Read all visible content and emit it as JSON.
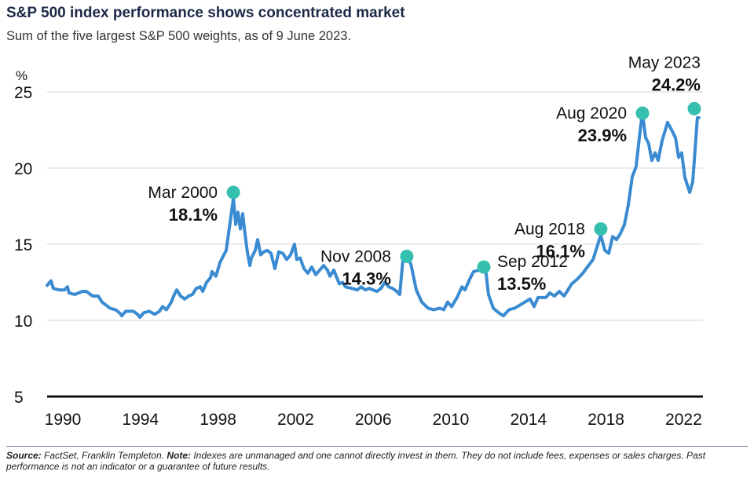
{
  "title": "S&P 500 index performance shows concentrated market",
  "subtitle": "Sum of the five largest S&P 500 weights, as of 9 June 2023.",
  "footer": {
    "source_label": "Source:",
    "source_text": " FactSet, Franklin Templeton. ",
    "note_label": "Note:",
    "note_text": " Indexes are unmanaged and one cannot directly invest in them. They do not include fees, expenses or sales charges. Past performance is not an indicator or a guarantee of future results."
  },
  "chart_data": {
    "type": "line",
    "title": "",
    "xlabel": "",
    "ylabel": "%",
    "xlim": [
      1989.2,
      2022.9
    ],
    "ylim": [
      5,
      25
    ],
    "x_ticks": [
      "1990",
      "1994",
      "1998",
      "2002",
      "2006",
      "2010",
      "2014",
      "2018",
      "2022"
    ],
    "y_ticks": [
      "5",
      "10",
      "15",
      "20",
      "25"
    ],
    "grid": "horizontal",
    "colors": {
      "line": "#3a8bd1",
      "marker": "#35bfae",
      "grid": "#e3e3e3",
      "baseline": "#111111"
    },
    "series": [
      {
        "points": [
          [
            1989.19,
            12.3
          ],
          [
            1989.39,
            12.6
          ],
          [
            1989.51,
            12.1
          ],
          [
            1989.8,
            12.0
          ],
          [
            1990.08,
            12.0
          ],
          [
            1990.24,
            12.2
          ],
          [
            1990.32,
            11.8
          ],
          [
            1990.61,
            11.7
          ],
          [
            1991.01,
            11.9
          ],
          [
            1991.21,
            11.9
          ],
          [
            1991.54,
            11.6
          ],
          [
            1991.82,
            11.6
          ],
          [
            1992.02,
            11.2
          ],
          [
            1992.23,
            11.0
          ],
          [
            1992.43,
            10.8
          ],
          [
            1992.71,
            10.7
          ],
          [
            1992.92,
            10.5
          ],
          [
            1993.04,
            10.3
          ],
          [
            1993.24,
            10.6
          ],
          [
            1993.44,
            10.6
          ],
          [
            1993.64,
            10.6
          ],
          [
            1993.85,
            10.4
          ],
          [
            1993.97,
            10.2
          ],
          [
            1994.17,
            10.5
          ],
          [
            1994.45,
            10.6
          ],
          [
            1994.74,
            10.4
          ],
          [
            1994.98,
            10.6
          ],
          [
            1995.14,
            10.9
          ],
          [
            1995.34,
            10.7
          ],
          [
            1995.59,
            11.2
          ],
          [
            1995.75,
            11.7
          ],
          [
            1995.87,
            12.0
          ],
          [
            1996.07,
            11.6
          ],
          [
            1996.28,
            11.4
          ],
          [
            1996.48,
            11.6
          ],
          [
            1996.68,
            11.7
          ],
          [
            1996.88,
            12.1
          ],
          [
            1997.09,
            12.2
          ],
          [
            1997.21,
            11.9
          ],
          [
            1997.41,
            12.5
          ],
          [
            1997.61,
            12.8
          ],
          [
            1997.69,
            13.2
          ],
          [
            1997.89,
            12.9
          ],
          [
            1998.1,
            13.8
          ],
          [
            1998.22,
            14.1
          ],
          [
            1998.42,
            14.6
          ],
          [
            1998.5,
            15.3
          ],
          [
            1998.62,
            16.4
          ],
          [
            1998.79,
            18.0
          ],
          [
            1998.91,
            16.3
          ],
          [
            1999.03,
            17.1
          ],
          [
            1999.15,
            16.0
          ],
          [
            1999.27,
            17.0
          ],
          [
            1999.39,
            15.7
          ],
          [
            1999.51,
            14.5
          ],
          [
            1999.64,
            13.6
          ],
          [
            1999.72,
            14.1
          ],
          [
            1999.92,
            14.6
          ],
          [
            2000.04,
            15.3
          ],
          [
            2000.2,
            14.3
          ],
          [
            2000.36,
            14.5
          ],
          [
            2000.53,
            14.6
          ],
          [
            2000.73,
            14.4
          ],
          [
            2000.93,
            13.4
          ],
          [
            2001.13,
            14.5
          ],
          [
            2001.34,
            14.4
          ],
          [
            2001.54,
            14.0
          ],
          [
            2001.74,
            14.3
          ],
          [
            2001.94,
            15.0
          ],
          [
            2002.06,
            14.0
          ],
          [
            2002.23,
            14.1
          ],
          [
            2002.43,
            13.4
          ],
          [
            2002.63,
            13.1
          ],
          [
            2002.83,
            13.5
          ],
          [
            2003.04,
            13.0
          ],
          [
            2003.24,
            13.3
          ],
          [
            2003.44,
            13.6
          ],
          [
            2003.64,
            13.3
          ],
          [
            2003.77,
            12.9
          ],
          [
            2003.97,
            13.3
          ],
          [
            2004.09,
            12.9
          ],
          [
            2004.25,
            12.4
          ],
          [
            2004.41,
            12.5
          ],
          [
            2004.57,
            12.2
          ],
          [
            2004.9,
            12.1
          ],
          [
            2005.18,
            12.0
          ],
          [
            2005.38,
            12.2
          ],
          [
            2005.59,
            12.0
          ],
          [
            2005.79,
            12.1
          ],
          [
            2005.99,
            12.0
          ],
          [
            2006.19,
            11.9
          ],
          [
            2006.4,
            12.1
          ],
          [
            2006.6,
            12.5
          ],
          [
            2006.8,
            12.2
          ],
          [
            2007.0,
            12.1
          ],
          [
            2007.21,
            11.9
          ],
          [
            2007.37,
            11.7
          ],
          [
            2007.53,
            14.0
          ],
          [
            2007.65,
            14.3
          ],
          [
            2007.94,
            13.7
          ],
          [
            2008.22,
            12.0
          ],
          [
            2008.5,
            11.2
          ],
          [
            2008.83,
            10.8
          ],
          [
            2009.11,
            10.7
          ],
          [
            2009.43,
            10.8
          ],
          [
            2009.64,
            10.7
          ],
          [
            2009.84,
            11.2
          ],
          [
            2010.04,
            10.9
          ],
          [
            2010.32,
            11.5
          ],
          [
            2010.57,
            12.2
          ],
          [
            2010.73,
            12.0
          ],
          [
            2010.97,
            12.7
          ],
          [
            2011.17,
            13.2
          ],
          [
            2011.46,
            13.3
          ],
          [
            2011.66,
            13.3
          ],
          [
            2011.78,
            13.5
          ],
          [
            2011.94,
            11.7
          ],
          [
            2012.19,
            10.8
          ],
          [
            2012.47,
            10.5
          ],
          [
            2012.71,
            10.3
          ],
          [
            2013.0,
            10.7
          ],
          [
            2013.28,
            10.8
          ],
          [
            2013.56,
            11.0
          ],
          [
            2013.81,
            11.2
          ],
          [
            2014.09,
            11.4
          ],
          [
            2014.29,
            10.9
          ],
          [
            2014.49,
            11.5
          ],
          [
            2014.9,
            11.5
          ],
          [
            2015.1,
            11.8
          ],
          [
            2015.34,
            11.6
          ],
          [
            2015.59,
            11.9
          ],
          [
            2015.83,
            11.6
          ],
          [
            2015.99,
            11.9
          ],
          [
            2016.23,
            12.4
          ],
          [
            2016.52,
            12.7
          ],
          [
            2016.8,
            13.1
          ],
          [
            2017.04,
            13.5
          ],
          [
            2017.33,
            14.0
          ],
          [
            2017.53,
            14.8
          ],
          [
            2017.73,
            15.6
          ],
          [
            2017.94,
            14.6
          ],
          [
            2018.14,
            14.4
          ],
          [
            2018.34,
            15.5
          ],
          [
            2018.54,
            15.3
          ],
          [
            2018.74,
            15.7
          ],
          [
            2018.95,
            16.3
          ],
          [
            2019.15,
            17.6
          ],
          [
            2019.35,
            19.4
          ],
          [
            2019.55,
            20.1
          ],
          [
            2019.76,
            22.5
          ],
          [
            2019.88,
            23.6
          ],
          [
            2020.04,
            22.0
          ],
          [
            2020.2,
            21.6
          ],
          [
            2020.36,
            20.5
          ],
          [
            2020.53,
            21.0
          ],
          [
            2020.69,
            20.5
          ],
          [
            2020.89,
            21.8
          ],
          [
            2021.01,
            22.3
          ],
          [
            2021.17,
            23.0
          ],
          [
            2021.38,
            22.5
          ],
          [
            2021.58,
            22.0
          ],
          [
            2021.74,
            20.7
          ],
          [
            2021.9,
            21.0
          ],
          [
            2022.06,
            19.4
          ],
          [
            2022.31,
            18.4
          ],
          [
            2022.47,
            19.1
          ],
          [
            2022.59,
            21.2
          ],
          [
            2022.71,
            23.3
          ],
          [
            2022.79,
            23.3
          ]
        ]
      }
    ],
    "annotations": [
      {
        "date": "Mar 2000",
        "value": "18.1%",
        "x": 1998.79,
        "y": 18.4,
        "side": "left"
      },
      {
        "date": "Nov 2008",
        "value": "14.3%",
        "x": 2007.73,
        "y": 14.2,
        "side": "left"
      },
      {
        "date": "Sep 2012",
        "value": "13.5%",
        "x": 2011.7,
        "y": 13.5,
        "side": "right"
      },
      {
        "date": "Aug 2018",
        "value": "16.1%",
        "x": 2017.73,
        "y": 16.0,
        "side": "left"
      },
      {
        "date": "Aug 2020",
        "value": "23.9%",
        "x": 2019.88,
        "y": 23.6,
        "side": "left"
      },
      {
        "date": "May 2023",
        "value": "24.2%",
        "x": 2022.55,
        "y": 23.9,
        "side": "above"
      }
    ]
  }
}
